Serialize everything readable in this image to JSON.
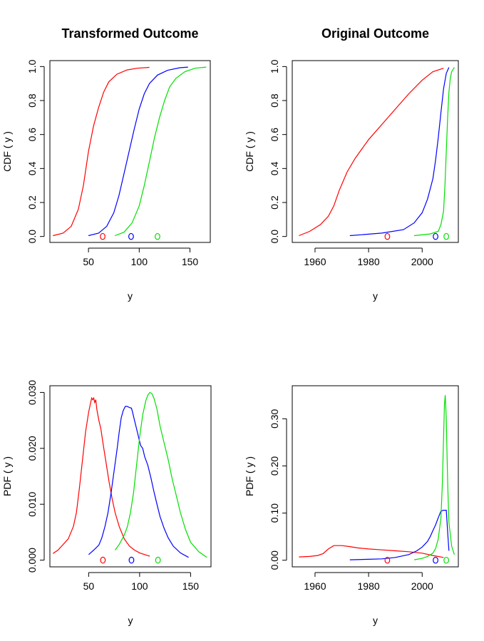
{
  "chart_data": [
    {
      "id": "cdf_transformed",
      "type": "line",
      "title": "Transformed  Outcome",
      "xlabel": "y",
      "ylabel": "CDF ( y )",
      "xlim": [
        12,
        170
      ],
      "ylim": [
        -0.035,
        1.035
      ],
      "xticks": [
        50,
        100,
        150
      ],
      "xtick_labels": [
        "50",
        "100",
        "150"
      ],
      "yticks": [
        0,
        0.2,
        0.4,
        0.6,
        0.8,
        1
      ],
      "ytick_labels": [
        "0.0",
        "0.2",
        "0.4",
        "0.6",
        "0.8",
        "1.0"
      ],
      "series": [
        {
          "color": "#ff0000",
          "x": [
            15,
            25,
            33,
            40,
            45,
            50,
            55,
            60,
            65,
            70,
            78,
            88,
            98,
            110
          ],
          "y": [
            0.005,
            0.02,
            0.06,
            0.16,
            0.3,
            0.5,
            0.65,
            0.76,
            0.85,
            0.91,
            0.955,
            0.98,
            0.99,
            0.995
          ]
        },
        {
          "color": "#0000ff",
          "x": [
            50,
            60,
            68,
            75,
            80,
            85,
            90,
            95,
            100,
            105,
            110,
            118,
            128,
            140,
            148
          ],
          "y": [
            0.005,
            0.02,
            0.06,
            0.14,
            0.24,
            0.37,
            0.5,
            0.63,
            0.75,
            0.84,
            0.9,
            0.95,
            0.978,
            0.993,
            0.997
          ]
        },
        {
          "color": "#00e000",
          "x": [
            76,
            85,
            93,
            100,
            105,
            110,
            115,
            120,
            125,
            130,
            136,
            145,
            155,
            166
          ],
          "y": [
            0.005,
            0.025,
            0.08,
            0.18,
            0.3,
            0.44,
            0.58,
            0.7,
            0.8,
            0.88,
            0.93,
            0.97,
            0.99,
            0.997
          ]
        }
      ],
      "markers": [
        {
          "color": "#ff0000",
          "x": 64,
          "y": 0
        },
        {
          "color": "#0000ff",
          "x": 92,
          "y": 0
        },
        {
          "color": "#00e000",
          "x": 118,
          "y": 0
        }
      ]
    },
    {
      "id": "cdf_original",
      "type": "line",
      "title": "Original  Outcome",
      "xlabel": "y",
      "ylabel": "CDF ( y )",
      "xlim": [
        1951.5,
        2013.5
      ],
      "ylim": [
        -0.035,
        1.035
      ],
      "xticks": [
        1960,
        1980,
        2000
      ],
      "xtick_labels": [
        "1960",
        "1980",
        "2000"
      ],
      "yticks": [
        0,
        0.2,
        0.4,
        0.6,
        0.8,
        1
      ],
      "ytick_labels": [
        "0.0",
        "0.2",
        "0.4",
        "0.6",
        "0.8",
        "1.0"
      ],
      "series": [
        {
          "color": "#ff0000",
          "x": [
            1954,
            1958,
            1962,
            1965,
            1967,
            1969,
            1972,
            1975,
            1980,
            1985,
            1990,
            1995,
            2000,
            2004,
            2008
          ],
          "y": [
            0.005,
            0.03,
            0.07,
            0.12,
            0.18,
            0.27,
            0.38,
            0.46,
            0.57,
            0.66,
            0.75,
            0.84,
            0.92,
            0.97,
            0.99
          ]
        },
        {
          "color": "#0000ff",
          "x": [
            1973,
            1985,
            1993,
            1997,
            2000,
            2002,
            2004,
            2005,
            2006,
            2007,
            2008,
            2009,
            2010
          ],
          "y": [
            0.005,
            0.02,
            0.04,
            0.08,
            0.14,
            0.22,
            0.34,
            0.45,
            0.58,
            0.73,
            0.87,
            0.96,
            0.995
          ]
        },
        {
          "color": "#00e000",
          "x": [
            1997,
            2003,
            2006,
            2007,
            2008,
            2008.5,
            2009,
            2009.5,
            2010,
            2010.5,
            2011,
            2012
          ],
          "y": [
            0.005,
            0.015,
            0.03,
            0.07,
            0.15,
            0.3,
            0.5,
            0.7,
            0.85,
            0.93,
            0.97,
            0.995
          ]
        }
      ],
      "markers": [
        {
          "color": "#ff0000",
          "x": 1987,
          "y": 0
        },
        {
          "color": "#0000ff",
          "x": 2005,
          "y": 0
        },
        {
          "color": "#00e000",
          "x": 2009,
          "y": 0
        }
      ]
    },
    {
      "id": "pdf_transformed",
      "type": "line",
      "title": "",
      "xlabel": "y",
      "ylabel": "PDF ( y )",
      "xlim": [
        12,
        170
      ],
      "ylim": [
        -0.0012,
        0.0312
      ],
      "xticks": [
        50,
        100,
        150
      ],
      "xtick_labels": [
        "50",
        "100",
        "150"
      ],
      "yticks": [
        0,
        0.01,
        0.02,
        0.03
      ],
      "ytick_labels": [
        "0.000",
        "0.010",
        "0.020",
        "0.030"
      ],
      "series": [
        {
          "color": "#ff0000",
          "x": [
            15,
            20,
            25,
            30,
            35,
            38,
            41,
            44,
            47,
            50,
            52,
            53,
            54,
            55,
            56,
            57,
            58,
            60,
            62,
            64,
            67,
            70,
            73,
            76,
            80,
            85,
            90,
            95,
            100,
            105,
            110
          ],
          "y": [
            0.0012,
            0.0018,
            0.0028,
            0.0038,
            0.006,
            0.0085,
            0.013,
            0.018,
            0.023,
            0.0265,
            0.0282,
            0.029,
            0.0287,
            0.029,
            0.0282,
            0.0287,
            0.027,
            0.025,
            0.0235,
            0.021,
            0.0175,
            0.014,
            0.011,
            0.0085,
            0.006,
            0.0038,
            0.0025,
            0.0018,
            0.0013,
            0.001,
            0.0007
          ]
        },
        {
          "color": "#0000ff",
          "x": [
            50,
            55,
            60,
            63,
            66,
            69,
            72,
            75,
            78,
            80,
            82,
            84,
            86,
            88,
            90,
            92,
            93,
            95,
            97,
            99,
            101,
            103,
            105,
            108,
            111,
            114,
            117,
            120,
            124,
            128,
            133,
            140,
            148
          ],
          "y": [
            0.001,
            0.0018,
            0.0027,
            0.004,
            0.006,
            0.0085,
            0.012,
            0.016,
            0.02,
            0.023,
            0.0255,
            0.0268,
            0.0275,
            0.0275,
            0.0273,
            0.0272,
            0.0265,
            0.025,
            0.0235,
            0.022,
            0.0205,
            0.02,
            0.0185,
            0.017,
            0.0148,
            0.0123,
            0.01,
            0.0078,
            0.0057,
            0.004,
            0.0025,
            0.0013,
            0.0005
          ]
        },
        {
          "color": "#00e000",
          "x": [
            76,
            80,
            85,
            88,
            91,
            94,
            97,
            100,
            103,
            106,
            108,
            110,
            112,
            114,
            117,
            120,
            124,
            128,
            132,
            136,
            140,
            145,
            150,
            158,
            166
          ],
          "y": [
            0.0018,
            0.0028,
            0.0045,
            0.006,
            0.0085,
            0.012,
            0.017,
            0.022,
            0.026,
            0.0285,
            0.0295,
            0.03,
            0.0298,
            0.029,
            0.027,
            0.024,
            0.021,
            0.018,
            0.0145,
            0.0115,
            0.0085,
            0.0055,
            0.0032,
            0.0015,
            0.0005
          ]
        }
      ],
      "markers": [
        {
          "color": "#ff0000",
          "x": 64,
          "y": 0
        },
        {
          "color": "#0000ff",
          "x": 92,
          "y": 0
        },
        {
          "color": "#00e000",
          "x": 118,
          "y": 0
        }
      ]
    },
    {
      "id": "pdf_original",
      "type": "line",
      "title": "",
      "xlabel": "y",
      "ylabel": "PDF ( y )",
      "xlim": [
        1951.5,
        2013.5
      ],
      "ylim": [
        -0.014,
        0.37
      ],
      "xticks": [
        1960,
        1980,
        2000
      ],
      "xtick_labels": [
        "1960",
        "1980",
        "2000"
      ],
      "yticks": [
        0,
        0.1,
        0.2,
        0.3
      ],
      "ytick_labels": [
        "0.00",
        "0.10",
        "0.20",
        "0.30"
      ],
      "series": [
        {
          "color": "#ff0000",
          "x": [
            1954,
            1958,
            1961,
            1963,
            1965,
            1967,
            1970,
            1973,
            1976,
            1980,
            1985,
            1990,
            1995,
            2000,
            2004,
            2008
          ],
          "y": [
            0.007,
            0.008,
            0.01,
            0.014,
            0.024,
            0.031,
            0.031,
            0.029,
            0.026,
            0.024,
            0.022,
            0.02,
            0.018,
            0.015,
            0.01,
            0.006
          ]
        },
        {
          "color": "#0000ff",
          "x": [
            1973,
            1980,
            1985,
            1990,
            1995,
            1998,
            2000,
            2002,
            2003,
            2004,
            2005,
            2006,
            2007,
            2008,
            2009,
            2009.5,
            2010
          ],
          "y": [
            0.001,
            0.002,
            0.003,
            0.006,
            0.012,
            0.02,
            0.028,
            0.04,
            0.05,
            0.063,
            0.075,
            0.09,
            0.104,
            0.106,
            0.106,
            0.06,
            0.02
          ]
        },
        {
          "color": "#00e000",
          "x": [
            1997,
            2000,
            2002,
            2004,
            2005,
            2006,
            2007,
            2007.5,
            2008,
            2008.3,
            2008.6,
            2009,
            2009.3,
            2009.6,
            2010,
            2011,
            2012
          ],
          "y": [
            0.001,
            0.004,
            0.008,
            0.015,
            0.025,
            0.045,
            0.09,
            0.16,
            0.26,
            0.33,
            0.35,
            0.3,
            0.22,
            0.15,
            0.08,
            0.03,
            0.012
          ]
        }
      ],
      "markers": [
        {
          "color": "#ff0000",
          "x": 1987,
          "y": 0
        },
        {
          "color": "#0000ff",
          "x": 2005,
          "y": 0
        },
        {
          "color": "#00e000",
          "x": 2009,
          "y": 0
        }
      ]
    }
  ]
}
